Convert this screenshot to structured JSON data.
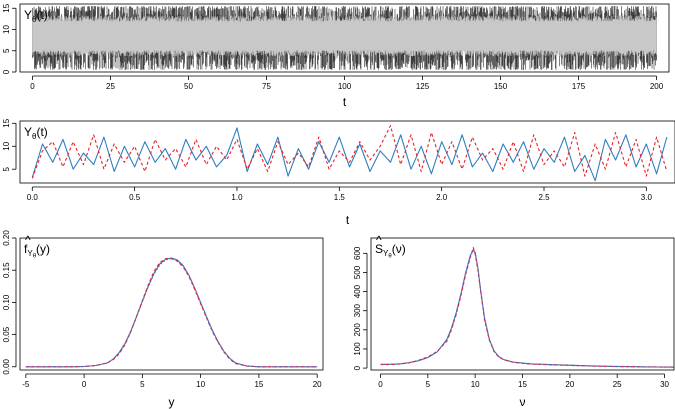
{
  "chart_data": [
    {
      "id": "p1",
      "type": "area",
      "title": "Y",
      "title_sub": "θ",
      "title_suffix": "(t)",
      "xlabel": "t",
      "ylabel": "",
      "xlim": [
        -4,
        204
      ],
      "ylim": [
        0,
        16
      ],
      "xticks": [
        0,
        25,
        50,
        75,
        100,
        125,
        150,
        175,
        200
      ],
      "yticks": [
        0,
        5,
        10,
        15
      ],
      "t_range": [
        0,
        200
      ],
      "band": {
        "mean": 7.5,
        "inner_low": 4.5,
        "inner_high": 12.5,
        "min": 0.5,
        "max": 15.5
      },
      "colors": {
        "band": "#c8c8c8",
        "spikes": "#000000"
      }
    },
    {
      "id": "p2",
      "type": "line",
      "title": "Y",
      "title_sub": "θ",
      "title_suffix": "(t)",
      "xlabel": "t",
      "ylabel": "",
      "xlim": [
        -0.06,
        3.14
      ],
      "ylim": [
        2,
        15.5
      ],
      "xticks": [
        0.0,
        0.5,
        1.0,
        1.5,
        2.0,
        2.5,
        3.0
      ],
      "xtick_labels": [
        "0.0",
        "0.5",
        "1.0",
        "1.5",
        "2.0",
        "2.5",
        "3.0"
      ],
      "yticks": [
        5,
        10,
        15
      ],
      "x": [
        0.0,
        0.05,
        0.1,
        0.15,
        0.2,
        0.25,
        0.3,
        0.35,
        0.4,
        0.45,
        0.5,
        0.55,
        0.6,
        0.65,
        0.7,
        0.75,
        0.8,
        0.85,
        0.9,
        0.95,
        1.0,
        1.05,
        1.1,
        1.15,
        1.2,
        1.25,
        1.3,
        1.35,
        1.4,
        1.45,
        1.5,
        1.55,
        1.6,
        1.65,
        1.7,
        1.75,
        1.8,
        1.85,
        1.9,
        1.95,
        2.0,
        2.05,
        2.1,
        2.15,
        2.2,
        2.25,
        2.3,
        2.35,
        2.4,
        2.45,
        2.5,
        2.55,
        2.6,
        2.65,
        2.7,
        2.75,
        2.8,
        2.85,
        2.9,
        2.95,
        3.0,
        3.05,
        3.1
      ],
      "series": [
        {
          "values": [
            3.2,
            10.5,
            6.5,
            11.5,
            5.0,
            8.5,
            6.0,
            12.0,
            4.5,
            10.0,
            5.5,
            11.0,
            6.5,
            9.5,
            5.0,
            11.5,
            7.0,
            10.0,
            5.5,
            8.0,
            14.0,
            4.5,
            10.5,
            6.0,
            12.0,
            3.5,
            9.5,
            5.0,
            11.0,
            6.5,
            12.0,
            5.5,
            10.5,
            4.5,
            9.0,
            6.5,
            12.5,
            5.0,
            10.0,
            4.0,
            11.0,
            6.0,
            12.5,
            5.5,
            8.5,
            4.5,
            10.5,
            6.5,
            11.0,
            5.0,
            9.5,
            6.5,
            12.0,
            4.5,
            8.0,
            2.5,
            11.5,
            7.0,
            12.5,
            5.5,
            10.5,
            4.0,
            12.0
          ],
          "color": "#2f7fc1",
          "dash": ""
        },
        {
          "values": [
            3.0,
            9.0,
            11.0,
            5.5,
            11.0,
            6.0,
            12.5,
            5.0,
            10.5,
            6.5,
            10.0,
            4.5,
            11.5,
            7.0,
            9.5,
            5.5,
            11.5,
            6.0,
            10.0,
            7.0,
            11.5,
            5.0,
            9.5,
            4.5,
            11.0,
            6.0,
            8.5,
            5.5,
            12.0,
            5.0,
            9.0,
            6.5,
            11.0,
            7.0,
            10.0,
            14.5,
            6.0,
            12.5,
            4.5,
            13.0,
            6.0,
            11.0,
            5.0,
            12.0,
            7.0,
            9.5,
            5.0,
            11.0,
            4.5,
            12.5,
            6.0,
            9.0,
            5.5,
            13.0,
            3.5,
            10.5,
            5.0,
            13.0,
            5.5,
            11.5,
            3.5,
            12.0,
            4.5
          ],
          "color": "#e8202a",
          "dash": "3,2.5"
        }
      ]
    },
    {
      "id": "p3",
      "type": "line",
      "title": "f",
      "title_hat": "^",
      "title_sub": "Y",
      "title_subsub": "θ",
      "title_suffix": "(y)",
      "xlabel": "y",
      "ylabel": "",
      "xlim": [
        -5.5,
        20.5
      ],
      "ylim": [
        -0.005,
        0.2
      ],
      "xticks": [
        -5,
        0,
        5,
        10,
        15,
        20
      ],
      "yticks": [
        0.0,
        0.05,
        0.1,
        0.15,
        0.2
      ],
      "ytick_labels": [
        "0.00",
        "0.05",
        "0.10",
        "0.15",
        "0.20"
      ],
      "x": [
        -5,
        -3,
        -1,
        0,
        1,
        2,
        2.5,
        3,
        3.5,
        4,
        4.5,
        5,
        5.5,
        6,
        6.5,
        7,
        7.5,
        8,
        8.5,
        9,
        9.5,
        10,
        10.5,
        11,
        11.5,
        12,
        12.5,
        13,
        14,
        15,
        17,
        20
      ],
      "series": [
        {
          "values": [
            0.0,
            0.0,
            0.0,
            0.0005,
            0.002,
            0.006,
            0.012,
            0.022,
            0.036,
            0.055,
            0.078,
            0.102,
            0.125,
            0.145,
            0.16,
            0.167,
            0.169,
            0.166,
            0.157,
            0.142,
            0.122,
            0.1,
            0.078,
            0.057,
            0.039,
            0.024,
            0.013,
            0.006,
            0.001,
            0.0,
            0.0,
            0.0
          ],
          "color": "#2f7fc1",
          "dash": ""
        },
        {
          "values": [
            0.0,
            0.0,
            0.0,
            0.0004,
            0.0018,
            0.006,
            0.011,
            0.02,
            0.034,
            0.054,
            0.078,
            0.103,
            0.127,
            0.148,
            0.162,
            0.168,
            0.168,
            0.164,
            0.155,
            0.14,
            0.12,
            0.098,
            0.076,
            0.055,
            0.038,
            0.023,
            0.012,
            0.005,
            0.001,
            0.0,
            0.0,
            0.0
          ],
          "color": "#e8202a",
          "dash": "3,2.5"
        },
        {
          "values": [
            0.0,
            0.0,
            0.0,
            0.0004,
            0.002,
            0.006,
            0.012,
            0.021,
            0.035,
            0.054,
            0.077,
            0.101,
            0.124,
            0.144,
            0.158,
            0.166,
            0.168,
            0.165,
            0.156,
            0.141,
            0.121,
            0.099,
            0.077,
            0.056,
            0.038,
            0.024,
            0.013,
            0.006,
            0.001,
            0.0,
            0.0,
            0.0
          ],
          "color": "#7a5aa6",
          "dash": "1.5,2"
        }
      ]
    },
    {
      "id": "p4",
      "type": "line",
      "title": "S",
      "title_hat": "^",
      "title_sub": "Y",
      "title_subsub": "θ",
      "title_suffix": "(ν)",
      "xlabel": "ν",
      "ylabel": "",
      "xlim": [
        -1,
        31
      ],
      "ylim": [
        -10,
        680
      ],
      "xticks": [
        0,
        5,
        10,
        15,
        20,
        25,
        30
      ],
      "yticks": [
        0,
        100,
        200,
        300,
        400,
        500,
        600
      ],
      "x": [
        0,
        1,
        2,
        3,
        4,
        5,
        6,
        7,
        7.5,
        8,
        8.5,
        9,
        9.5,
        9.8,
        10,
        10.3,
        10.6,
        11,
        11.5,
        12,
        12.5,
        13,
        14,
        15,
        16,
        18,
        20,
        22,
        25,
        28,
        31
      ],
      "series": [
        {
          "values": [
            20,
            20,
            22,
            28,
            38,
            55,
            85,
            150,
            210,
            290,
            390,
            500,
            590,
            615,
            605,
            520,
            400,
            260,
            150,
            90,
            60,
            45,
            32,
            26,
            22,
            18,
            15,
            12,
            9,
            6,
            5
          ],
          "color": "#2f7fc1",
          "dash": ""
        },
        {
          "values": [
            18,
            19,
            21,
            27,
            40,
            58,
            88,
            140,
            200,
            280,
            380,
            490,
            580,
            630,
            595,
            510,
            395,
            250,
            145,
            85,
            58,
            44,
            30,
            25,
            21,
            17,
            14,
            11,
            8,
            6,
            5
          ],
          "color": "#e8202a",
          "dash": "3,2.5"
        },
        {
          "values": [
            19,
            20,
            22,
            28,
            39,
            56,
            86,
            145,
            205,
            285,
            385,
            495,
            585,
            620,
            600,
            515,
            398,
            255,
            148,
            88,
            59,
            44,
            31,
            25,
            21,
            17,
            14,
            11,
            8,
            6,
            5
          ],
          "color": "#7a5aa6",
          "dash": "1.5,2"
        }
      ]
    }
  ]
}
